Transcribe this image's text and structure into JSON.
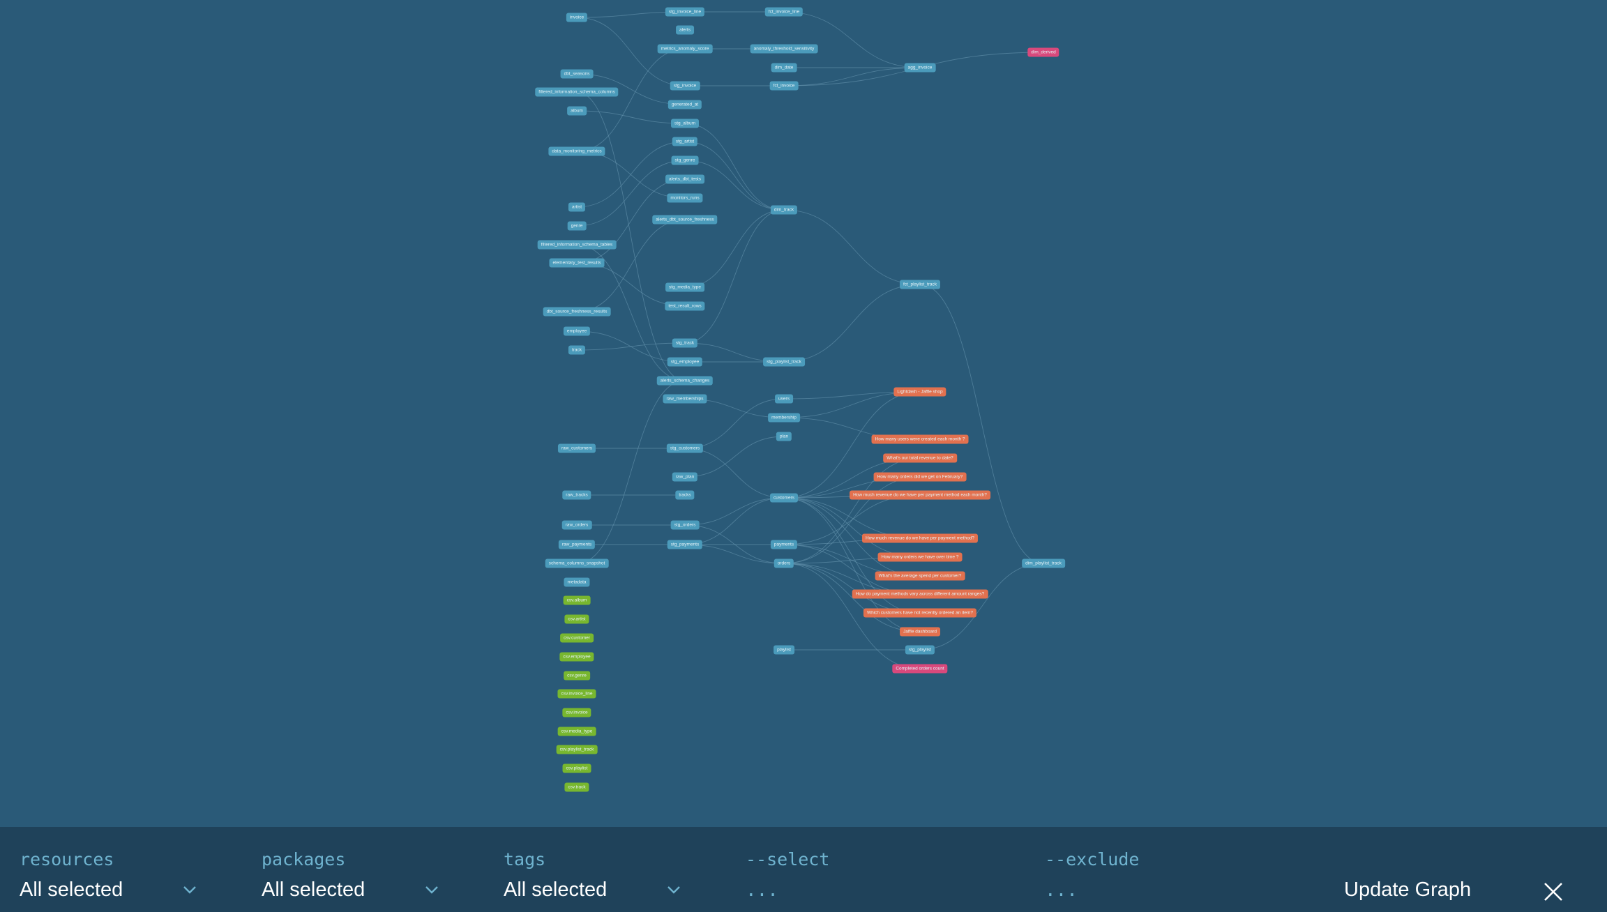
{
  "colors": {
    "background": "#2a5a78",
    "edge": "#6b9bb4",
    "model": "#4b9bbb",
    "source": "#78b72f",
    "exposure": "#e2714f",
    "metric": "#d9497c",
    "footer": "#1f425a",
    "footer_label": "#6fb3cf"
  },
  "graph": {
    "nodes": [
      {
        "id": "invoice",
        "label": "invoice",
        "type": "model"
      },
      {
        "id": "dbt_seasons",
        "label": "dbt_seasons",
        "type": "model"
      },
      {
        "id": "filtered_information_schema_columns",
        "label": "filtered_information_schema_columns",
        "type": "model"
      },
      {
        "id": "album",
        "label": "album",
        "type": "model"
      },
      {
        "id": "data_monitoring_metrics",
        "label": "data_monitoring_metrics",
        "type": "model"
      },
      {
        "id": "artist",
        "label": "artist",
        "type": "model"
      },
      {
        "id": "genre",
        "label": "genre",
        "type": "model"
      },
      {
        "id": "filtered_information_schema_tables",
        "label": "filtered_information_schema_tables",
        "type": "model"
      },
      {
        "id": "elementary_test_results",
        "label": "elementary_test_results",
        "type": "model"
      },
      {
        "id": "dbt_source_freshness_results",
        "label": "dbt_source_freshness_results",
        "type": "model"
      },
      {
        "id": "employee",
        "label": "employee",
        "type": "model"
      },
      {
        "id": "track",
        "label": "track",
        "type": "model"
      },
      {
        "id": "raw_customers",
        "label": "raw_customers",
        "type": "model"
      },
      {
        "id": "raw_tracks",
        "label": "raw_tracks",
        "type": "model"
      },
      {
        "id": "raw_orders",
        "label": "raw_orders",
        "type": "model"
      },
      {
        "id": "raw_payments",
        "label": "raw_payments",
        "type": "model"
      },
      {
        "id": "schema_columns_snapshot",
        "label": "schema_columns_snapshot",
        "type": "model"
      },
      {
        "id": "metadata",
        "label": "metadata",
        "type": "model"
      },
      {
        "id": "src_album",
        "label": "csv.album",
        "type": "source"
      },
      {
        "id": "src_artist",
        "label": "csv.artist",
        "type": "source"
      },
      {
        "id": "src_customer",
        "label": "csv.customer",
        "type": "source"
      },
      {
        "id": "src_employee",
        "label": "csv.employee",
        "type": "source"
      },
      {
        "id": "src_genre",
        "label": "csv.genre",
        "type": "source"
      },
      {
        "id": "src_invoice_line",
        "label": "csv.invoice_line",
        "type": "source"
      },
      {
        "id": "src_invoice",
        "label": "csv.invoice",
        "type": "source"
      },
      {
        "id": "src_media_type",
        "label": "csv.media_type",
        "type": "source"
      },
      {
        "id": "src_playlist_track",
        "label": "csv.playlist_track",
        "type": "source"
      },
      {
        "id": "src_playlist",
        "label": "csv.playlist",
        "type": "source"
      },
      {
        "id": "src_track",
        "label": "csv.track",
        "type": "source"
      },
      {
        "id": "stg_invoice_line",
        "label": "stg_invoice_line",
        "type": "model"
      },
      {
        "id": "alerts",
        "label": "alerts",
        "type": "model"
      },
      {
        "id": "metrics_anomaly_score",
        "label": "metrics_anomaly_score",
        "type": "model"
      },
      {
        "id": "stg_invoice",
        "label": "stg_invoice",
        "type": "model"
      },
      {
        "id": "generated_at",
        "label": "generated_at",
        "type": "model"
      },
      {
        "id": "stg_album",
        "label": "stg_album",
        "type": "model"
      },
      {
        "id": "stg_artist",
        "label": "stg_artist",
        "type": "model"
      },
      {
        "id": "stg_genre",
        "label": "stg_genre",
        "type": "model"
      },
      {
        "id": "alerts_dbt_tests",
        "label": "alerts_dbt_tests",
        "type": "model"
      },
      {
        "id": "monitors_runs",
        "label": "monitors_runs",
        "type": "model"
      },
      {
        "id": "alerts_dbt_source_freshness",
        "label": "alerts_dbt_source_freshness",
        "type": "model"
      },
      {
        "id": "stg_media_type",
        "label": "stg_media_type",
        "type": "model"
      },
      {
        "id": "test_result_rows",
        "label": "test_result_rows",
        "type": "model"
      },
      {
        "id": "stg_track",
        "label": "stg_track",
        "type": "model"
      },
      {
        "id": "stg_employee",
        "label": "stg_employee",
        "type": "model"
      },
      {
        "id": "alerts_schema_changes",
        "label": "alerts_schema_changes",
        "type": "model"
      },
      {
        "id": "raw_memberships",
        "label": "raw_memberships",
        "type": "model"
      },
      {
        "id": "stg_customers",
        "label": "stg_customers",
        "type": "model"
      },
      {
        "id": "raw_plan",
        "label": "raw_plan",
        "type": "model"
      },
      {
        "id": "tracks",
        "label": "tracks",
        "type": "model"
      },
      {
        "id": "stg_orders",
        "label": "stg_orders",
        "type": "model"
      },
      {
        "id": "stg_payments",
        "label": "stg_payments",
        "type": "model"
      },
      {
        "id": "fct_invoice_line",
        "label": "fct_invoice_line",
        "type": "model"
      },
      {
        "id": "anomaly_threshold_sensitivity",
        "label": "anomaly_threshold_sensitivity",
        "type": "model"
      },
      {
        "id": "dim_date",
        "label": "dim_date",
        "type": "model"
      },
      {
        "id": "fct_invoice",
        "label": "fct_invoice",
        "type": "model"
      },
      {
        "id": "dim_track",
        "label": "dim_track",
        "type": "model"
      },
      {
        "id": "stg_playlist_track",
        "label": "stg_playlist_track",
        "type": "model"
      },
      {
        "id": "users",
        "label": "users",
        "type": "model"
      },
      {
        "id": "membership",
        "label": "membership",
        "type": "model"
      },
      {
        "id": "plan",
        "label": "plan",
        "type": "model"
      },
      {
        "id": "customers",
        "label": "customers",
        "type": "model"
      },
      {
        "id": "payments",
        "label": "payments",
        "type": "model"
      },
      {
        "id": "orders",
        "label": "orders",
        "type": "model"
      },
      {
        "id": "playlist",
        "label": "playlist",
        "type": "model"
      },
      {
        "id": "agg_invoice",
        "label": "agg_invoice",
        "type": "model"
      },
      {
        "id": "fct_playlist_track",
        "label": "fct_playlist_track",
        "type": "model"
      },
      {
        "id": "stg_playlist",
        "label": "stg_playlist",
        "type": "model"
      },
      {
        "id": "exp_lightdash",
        "label": "Lightdash - Jaffle shop",
        "type": "exposure"
      },
      {
        "id": "exp_q1",
        "label": "How many users were created each month ?",
        "type": "exposure"
      },
      {
        "id": "exp_q2",
        "label": "What's our total revenue to date?",
        "type": "exposure"
      },
      {
        "id": "exp_q3",
        "label": "How many orders did we get on February?",
        "type": "exposure"
      },
      {
        "id": "exp_q4",
        "label": "How much revenue do we have per payment method each month?",
        "type": "exposure"
      },
      {
        "id": "exp_q5",
        "label": "How much revenue do we have per payment method?",
        "type": "exposure"
      },
      {
        "id": "exp_q6",
        "label": "How many orders we have over time ?",
        "type": "exposure"
      },
      {
        "id": "exp_q7",
        "label": "What's the average spend per customer?",
        "type": "exposure"
      },
      {
        "id": "exp_q8",
        "label": "How do payment methods vary across different amount ranges?",
        "type": "exposure"
      },
      {
        "id": "exp_q9",
        "label": "Which customers have not recently ordered an item?",
        "type": "exposure"
      },
      {
        "id": "exp_jaffle",
        "label": "Jaffle dashboard",
        "type": "exposure"
      },
      {
        "id": "met_completed",
        "label": "Completed orders count",
        "type": "metric"
      },
      {
        "id": "met_dim_derived",
        "label": "dim_derived",
        "type": "metric"
      },
      {
        "id": "dim_playlist_track",
        "label": "dim_playlist_track",
        "type": "model"
      }
    ],
    "edges": [
      [
        "invoice",
        "stg_invoice"
      ],
      [
        "album",
        "stg_album"
      ],
      [
        "artist",
        "stg_artist"
      ],
      [
        "genre",
        "stg_genre"
      ],
      [
        "track",
        "stg_track"
      ],
      [
        "employee",
        "stg_employee"
      ],
      [
        "stg_invoice_line",
        "fct_invoice_line"
      ],
      [
        "metrics_anomaly_score",
        "anomaly_threshold_sensitivity"
      ],
      [
        "stg_invoice",
        "fct_invoice"
      ],
      [
        "dim_date",
        "agg_invoice"
      ],
      [
        "fct_invoice",
        "agg_invoice"
      ],
      [
        "fct_invoice_line",
        "agg_invoice"
      ],
      [
        "stg_album",
        "dim_track"
      ],
      [
        "stg_artist",
        "dim_track"
      ],
      [
        "stg_genre",
        "dim_track"
      ],
      [
        "stg_media_type",
        "dim_track"
      ],
      [
        "stg_track",
        "dim_track"
      ],
      [
        "dim_track",
        "fct_playlist_track"
      ],
      [
        "stg_playlist_track",
        "fct_playlist_track"
      ],
      [
        "stg_employee",
        "stg_playlist_track"
      ],
      [
        "fct_playlist_track",
        "dim_playlist_track"
      ],
      [
        "raw_customers",
        "stg_customers"
      ],
      [
        "raw_tracks",
        "tracks"
      ],
      [
        "raw_orders",
        "stg_orders"
      ],
      [
        "raw_payments",
        "stg_payments"
      ],
      [
        "stg_customers",
        "customers"
      ],
      [
        "stg_orders",
        "customers"
      ],
      [
        "stg_payments",
        "customers"
      ],
      [
        "stg_orders",
        "orders"
      ],
      [
        "stg_payments",
        "orders"
      ],
      [
        "stg_payments",
        "payments"
      ],
      [
        "raw_memberships",
        "membership"
      ],
      [
        "raw_plan",
        "plan"
      ],
      [
        "stg_customers",
        "users"
      ],
      [
        "membership",
        "exp_lightdash"
      ],
      [
        "users",
        "exp_lightdash"
      ],
      [
        "membership",
        "exp_q1"
      ],
      [
        "customers",
        "exp_lightdash"
      ],
      [
        "customers",
        "exp_q2"
      ],
      [
        "customers",
        "exp_q3"
      ],
      [
        "customers",
        "exp_q4"
      ],
      [
        "customers",
        "exp_q5"
      ],
      [
        "customers",
        "exp_q6"
      ],
      [
        "customers",
        "exp_q7"
      ],
      [
        "customers",
        "exp_q9"
      ],
      [
        "customers",
        "exp_jaffle"
      ],
      [
        "payments",
        "exp_q4"
      ],
      [
        "payments",
        "exp_q5"
      ],
      [
        "payments",
        "exp_q7"
      ],
      [
        "payments",
        "exp_q8"
      ],
      [
        "orders",
        "exp_q2"
      ],
      [
        "orders",
        "exp_q3"
      ],
      [
        "orders",
        "exp_q6"
      ],
      [
        "orders",
        "exp_q8"
      ],
      [
        "orders",
        "exp_q9"
      ],
      [
        "orders",
        "exp_jaffle"
      ],
      [
        "orders",
        "met_completed"
      ],
      [
        "playlist",
        "stg_playlist"
      ],
      [
        "stg_playlist",
        "dim_playlist_track"
      ],
      [
        "filtered_information_schema_columns",
        "alerts_schema_changes"
      ],
      [
        "elementary_test_results",
        "alerts_dbt_tests"
      ],
      [
        "dbt_source_freshness_results",
        "alerts_dbt_source_freshness"
      ],
      [
        "data_monitoring_metrics",
        "metrics_anomaly_score"
      ],
      [
        "dbt_seasons",
        "generated_at"
      ],
      [
        "data_monitoring_metrics",
        "monitors_runs"
      ],
      [
        "elementary_test_results",
        "test_result_rows"
      ],
      [
        "invoice",
        "stg_invoice_line"
      ],
      [
        "schema_columns_snapshot",
        "alerts_schema_changes"
      ],
      [
        "filtered_information_schema_tables",
        "alerts_schema_changes"
      ],
      [
        "fct_invoice",
        "met_dim_derived"
      ],
      [
        "stg_track",
        "stg_playlist_track"
      ]
    ]
  },
  "footer": {
    "resources": {
      "label": "resources",
      "value": "All selected"
    },
    "packages": {
      "label": "packages",
      "value": "All selected"
    },
    "tags": {
      "label": "tags",
      "value": "All selected"
    },
    "select": {
      "label": "--select",
      "value": "..."
    },
    "exclude": {
      "label": "--exclude",
      "value": "..."
    },
    "update_label": "Update Graph"
  }
}
